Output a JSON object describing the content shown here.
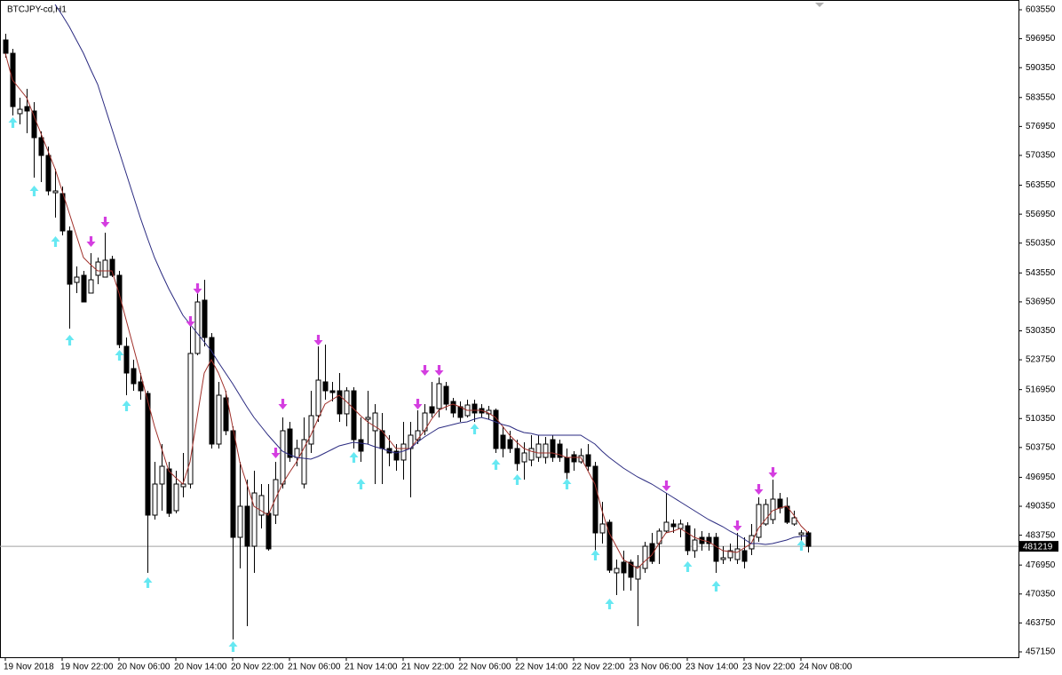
{
  "chart_data": {
    "type": "candlestick",
    "title": "BTCJPY-cd,H1",
    "categories": [
      "19 Nov 2018",
      null,
      null,
      null,
      null,
      null,
      null,
      null,
      "19 Nov 22:00",
      null,
      null,
      null,
      null,
      null,
      null,
      null,
      "20 Nov 06:00",
      null,
      null,
      null,
      null,
      null,
      null,
      null,
      "20 Nov 14:00",
      null,
      null,
      null,
      null,
      null,
      null,
      null,
      "20 Nov 22:00",
      null,
      null,
      null,
      null,
      null,
      null,
      null,
      "21 Nov 06:00",
      null,
      null,
      null,
      null,
      null,
      null,
      null,
      "21 Nov 14:00",
      null,
      null,
      null,
      null,
      null,
      null,
      null,
      "21 Nov 22:00",
      null,
      null,
      null,
      null,
      null,
      null,
      null,
      "22 Nov 06:00",
      null,
      null,
      null,
      null,
      null,
      null,
      null,
      "22 Nov 14:00",
      null,
      null,
      null,
      null,
      null,
      null,
      null,
      "22 Nov 22:00",
      null,
      null,
      null,
      null,
      null,
      null,
      null,
      "23 Nov 06:00",
      null,
      null,
      null,
      null,
      null,
      null,
      null,
      "23 Nov 14:00",
      null,
      null,
      null,
      null,
      null,
      null,
      null,
      "23 Nov 22:00",
      null,
      null,
      null,
      null,
      null,
      null,
      null,
      "24 Nov 08:00",
      null
    ],
    "open": [
      596670,
      593630,
      579860,
      581480,
      580470,
      574390,
      570340,
      561840,
      561640,
      553130,
      541390,
      543010,
      538960,
      543010,
      542600,
      546650,
      543010,
      526810,
      521740,
      518710,
      516070,
      488330,
      495420,
      498860,
      489340,
      494810,
      495420,
      525190,
      537340,
      528830,
      504530,
      515060,
      507570,
      483270,
      490360,
      481240,
      488330,
      488740,
      488330,
      495420,
      507970,
      501490,
      495420,
      504530,
      511010,
      518710,
      516680,
      516680,
      511420,
      516680,
      505540,
      510200,
      507570,
      507570,
      503520,
      502910,
      500890,
      503520,
      505540,
      507570,
      513040,
      512630,
      517690,
      514250,
      513040,
      511010,
      513640,
      512630,
      511420,
      512230,
      506560,
      505540,
      503520,
      500480,
      500890,
      501490,
      501490,
      505540,
      504530,
      501490,
      502100,
      500480,
      502100,
      499470,
      484280,
      486710,
      475170,
      477600,
      477600,
      473750,
      476180,
      481850,
      481850,
      484690,
      486310,
      485290,
      485900,
      480230,
      483270,
      483270,
      483270,
      478210,
      478610,
      478210,
      480230,
      480640,
      483270,
      486310,
      487320,
      491980,
      490360,
      486310,
      483880,
      484280
    ],
    "high": [
      598090,
      594640,
      583500,
      585530,
      582490,
      575810,
      572370,
      567300,
      563260,
      554140,
      545030,
      544020,
      548070,
      547060,
      552730,
      547460,
      544020,
      528830,
      523770,
      520730,
      516680,
      500480,
      504530,
      500480,
      498460,
      502510,
      532880,
      540980,
      541990,
      529840,
      518710,
      516680,
      508580,
      500480,
      496430,
      498460,
      495420,
      495420,
      500480,
      510610,
      509590,
      505540,
      510610,
      516680,
      526810,
      527210,
      518710,
      520730,
      517490,
      517490,
      510610,
      516680,
      513640,
      511620,
      506560,
      504530,
      509590,
      509590,
      512230,
      513640,
      518710,
      519720,
      518710,
      515060,
      514250,
      514660,
      514660,
      513640,
      513240,
      512630,
      508580,
      507570,
      505540,
      504940,
      506560,
      506560,
      506150,
      506560,
      505540,
      503520,
      502910,
      503520,
      504530,
      500480,
      491370,
      487320,
      478210,
      480230,
      478210,
      479220,
      482260,
      484280,
      485290,
      493390,
      487320,
      487320,
      486710,
      485290,
      484690,
      484280,
      484280,
      481240,
      481850,
      484280,
      483270,
      486310,
      492380,
      491980,
      496430,
      493390,
      492380,
      489340,
      484890,
      484690
    ],
    "low": [
      592620,
      579460,
      577430,
      575410,
      565280,
      564270,
      561230,
      556170,
      552120,
      530860,
      538960,
      536930,
      538960,
      540980,
      542600,
      542600,
      526400,
      515670,
      516680,
      514660,
      475170,
      487320,
      489340,
      487930,
      488740,
      492380,
      494410,
      524780,
      526810,
      503520,
      503520,
      506560,
      459980,
      476180,
      463020,
      475170,
      485290,
      480230,
      486310,
      494410,
      500480,
      499470,
      494410,
      502510,
      509590,
      514660,
      514250,
      509590,
      508580,
      503520,
      500480,
      504530,
      495420,
      495420,
      499470,
      498460,
      496430,
      492380,
      504530,
      506560,
      510610,
      510610,
      512230,
      510610,
      509590,
      510610,
      509590,
      510610,
      510200,
      502510,
      501490,
      502510,
      498460,
      496430,
      499470,
      500480,
      500080,
      500480,
      500480,
      496430,
      498460,
      500080,
      498460,
      480230,
      481850,
      475170,
      470110,
      471120,
      471120,
      463020,
      475170,
      477190,
      477190,
      484280,
      484280,
      483270,
      479220,
      478610,
      480230,
      480230,
      475170,
      477190,
      477800,
      477190,
      476180,
      479220,
      482260,
      485900,
      486310,
      488740,
      486310,
      485900,
      482260,
      479830
    ],
    "close": [
      593630,
      581480,
      580870,
      580470,
      574390,
      570340,
      562240,
      562240,
      553130,
      540980,
      542600,
      536930,
      541990,
      546040,
      546450,
      543010,
      527210,
      520730,
      518300,
      516680,
      488330,
      495420,
      499470,
      488740,
      495420,
      495420,
      525190,
      536930,
      528830,
      504530,
      515670,
      507570,
      483270,
      490360,
      481240,
      493390,
      492790,
      480640,
      496430,
      507570,
      501490,
      503520,
      505540,
      511010,
      519110,
      516680,
      516280,
      511420,
      516680,
      505540,
      502910,
      510610,
      511620,
      503520,
      502510,
      500890,
      504530,
      506560,
      507570,
      511620,
      511620,
      518300,
      513640,
      511620,
      510610,
      513440,
      511620,
      511620,
      512230,
      503520,
      503520,
      503520,
      500080,
      502510,
      503520,
      504530,
      504530,
      501490,
      501490,
      498050,
      500480,
      501900,
      499470,
      484280,
      486310,
      475780,
      476180,
      475170,
      474160,
      476590,
      481240,
      477800,
      484690,
      486710,
      485700,
      486310,
      480230,
      482660,
      481850,
      481850,
      477800,
      478610,
      480230,
      480640,
      477800,
      483670,
      490760,
      490760,
      491980,
      489950,
      486710,
      487720,
      484280,
      481219
    ],
    "bull_color": "#ffffff",
    "bear_color": "#000000",
    "ma_lines": [
      {
        "color": "#a0302a",
        "values": [
          593630,
          587560,
          585530,
          583500,
          579460,
          575410,
          571360,
          567300,
          562240,
          557180,
          552120,
          547060,
          545440,
          544020,
          544020,
          544020,
          538960,
          532880,
          526810,
          520730,
          514660,
          508580,
          503520,
          498460,
          496840,
          495420,
          500480,
          510610,
          520730,
          523770,
          520730,
          516680,
          508580,
          500480,
          495420,
          490360,
          489340,
          488330,
          491980,
          495420,
          498050,
          500480,
          503520,
          506560,
          510200,
          513640,
          514660,
          515670,
          514250,
          512630,
          511010,
          509590,
          508580,
          507570,
          505540,
          503520,
          503520,
          503520,
          505540,
          507570,
          510200,
          512230,
          513040,
          513640,
          513040,
          512230,
          512230,
          512230,
          511620,
          510610,
          508580,
          506560,
          504940,
          503520,
          502910,
          502510,
          502510,
          502510,
          502100,
          501490,
          501490,
          501490,
          498460,
          495420,
          489340,
          484280,
          481240,
          478210,
          477190,
          476180,
          477800,
          479220,
          481850,
          484280,
          484690,
          485290,
          484280,
          483270,
          482660,
          482260,
          481240,
          480230,
          480030,
          479830,
          480840,
          481850,
          485290,
          487320,
          489340,
          489950,
          490360,
          488330,
          485900,
          484280
        ]
      },
      {
        "color": "#2a2a80",
        "values": [
          null,
          null,
          null,
          null,
          null,
          null,
          null,
          604770,
          602340,
          599710,
          596670,
          593630,
          589990,
          586540,
          581480,
          576420,
          571360,
          566290,
          561230,
          556170,
          551510,
          547060,
          543410,
          539970,
          536930,
          533890,
          531870,
          529840,
          527820,
          525790,
          523160,
          520730,
          518300,
          515670,
          513040,
          510610,
          508580,
          506560,
          504730,
          502910,
          502100,
          501490,
          501290,
          501090,
          501700,
          502510,
          503310,
          504120,
          504530,
          504940,
          504730,
          504530,
          503920,
          503520,
          502910,
          502510,
          502910,
          503520,
          504940,
          506150,
          507160,
          508180,
          508580,
          508990,
          509390,
          509590,
          510200,
          510610,
          510200,
          509590,
          508990,
          508580,
          507770,
          507160,
          506960,
          506560,
          506560,
          506560,
          506560,
          506560,
          506560,
          506560,
          505540,
          504530,
          502910,
          501490,
          500280,
          499060,
          498050,
          497040,
          496230,
          495420,
          494410,
          493390,
          492380,
          491370,
          490360,
          489340,
          488330,
          487320,
          486510,
          485700,
          484690,
          483880,
          482860,
          481850,
          481850,
          481650,
          481850,
          482260,
          482660,
          483270,
          483470,
          483670
        ]
      }
    ],
    "up_arrows": {
      "color": "#66e8f2",
      "values": [
        null,
        577840,
        null,
        null,
        562240,
        null,
        null,
        550700,
        null,
        528220,
        null,
        null,
        null,
        null,
        null,
        null,
        524780,
        513240,
        null,
        null,
        472940,
        null,
        null,
        null,
        null,
        null,
        null,
        null,
        null,
        null,
        null,
        null,
        458360,
        null,
        null,
        null,
        null,
        null,
        null,
        null,
        null,
        null,
        null,
        null,
        null,
        null,
        null,
        null,
        null,
        501490,
        495420,
        null,
        null,
        null,
        null,
        null,
        null,
        null,
        null,
        null,
        null,
        null,
        null,
        null,
        null,
        null,
        507970,
        null,
        null,
        499870,
        null,
        null,
        496430,
        null,
        null,
        null,
        null,
        null,
        null,
        495420,
        null,
        null,
        null,
        479220,
        null,
        468080,
        null,
        null,
        null,
        null,
        null,
        null,
        null,
        null,
        null,
        null,
        476590,
        null,
        null,
        null,
        472130,
        null,
        null,
        null,
        null,
        null,
        null,
        null,
        null,
        null,
        null,
        null,
        481450,
        null
      ]
    },
    "down_arrows": {
      "color": "#d43ee0",
      "values": [
        null,
        null,
        null,
        null,
        null,
        null,
        null,
        null,
        null,
        null,
        null,
        null,
        550700,
        null,
        555150,
        null,
        null,
        null,
        null,
        null,
        null,
        null,
        null,
        null,
        null,
        null,
        532480,
        539970,
        null,
        null,
        null,
        null,
        null,
        null,
        null,
        null,
        null,
        null,
        502510,
        513640,
        null,
        null,
        null,
        null,
        528220,
        null,
        null,
        null,
        null,
        null,
        null,
        null,
        null,
        null,
        null,
        null,
        null,
        null,
        513640,
        521340,
        null,
        521340,
        null,
        null,
        null,
        null,
        null,
        null,
        null,
        null,
        null,
        null,
        null,
        null,
        null,
        null,
        null,
        null,
        null,
        null,
        null,
        null,
        null,
        null,
        null,
        null,
        null,
        null,
        null,
        null,
        null,
        null,
        null,
        495010,
        null,
        null,
        null,
        null,
        null,
        null,
        null,
        null,
        null,
        485900,
        null,
        null,
        494200,
        null,
        498050,
        null,
        null,
        null,
        null,
        null
      ]
    },
    "current_price": 481219,
    "ylim": [
      455930,
      605780
    ],
    "yticks": [
      603550,
      596950,
      590350,
      583550,
      576950,
      570350,
      563550,
      556950,
      550350,
      543550,
      536950,
      530350,
      523750,
      516950,
      510350,
      503750,
      496950,
      490350,
      483750,
      476950,
      470350,
      463750,
      457150
    ]
  }
}
